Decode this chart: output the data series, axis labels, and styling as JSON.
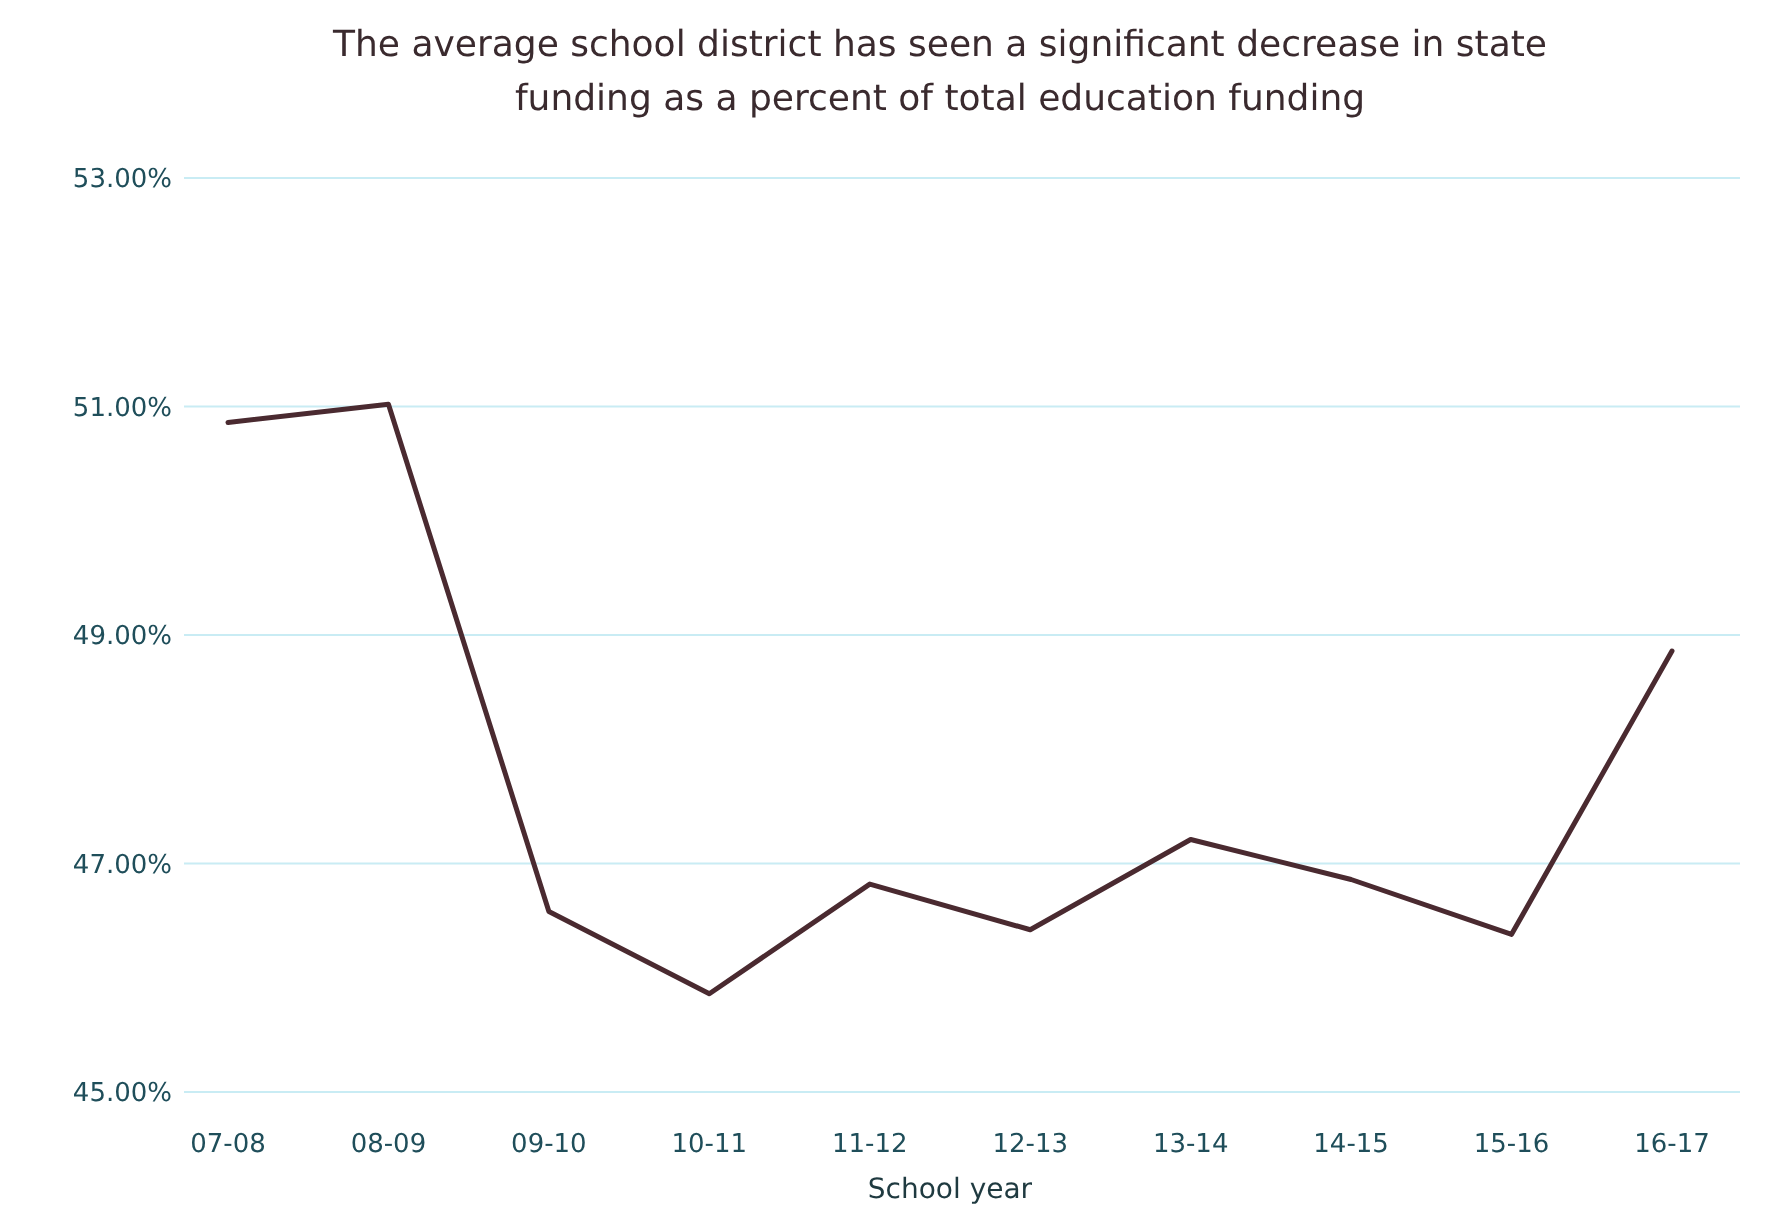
{
  "chart_data": {
    "type": "line",
    "title": "The average school district has seen a significant decrease in state funding as a percent of total education funding",
    "xlabel": "School year",
    "categories": [
      "07-08",
      "08-09",
      "09-10",
      "10-11",
      "11-12",
      "12-13",
      "13-14",
      "14-15",
      "15-16",
      "16-17"
    ],
    "series": [
      {
        "color": "#4a2a30",
        "values": [
          50.86,
          51.02,
          46.58,
          45.86,
          46.82,
          46.42,
          47.21,
          46.86,
          46.38,
          48.86
        ]
      }
    ],
    "ylim": [
      45,
      53
    ],
    "yticks": [
      {
        "value": 45,
        "label": "45.00%"
      },
      {
        "value": 47,
        "label": "47.00%"
      },
      {
        "value": 49,
        "label": "49.00%"
      },
      {
        "value": 51,
        "label": "51.00%"
      },
      {
        "value": 53,
        "label": "53.00%"
      }
    ],
    "grid": "y",
    "marker": "none",
    "line_style": "solid"
  }
}
